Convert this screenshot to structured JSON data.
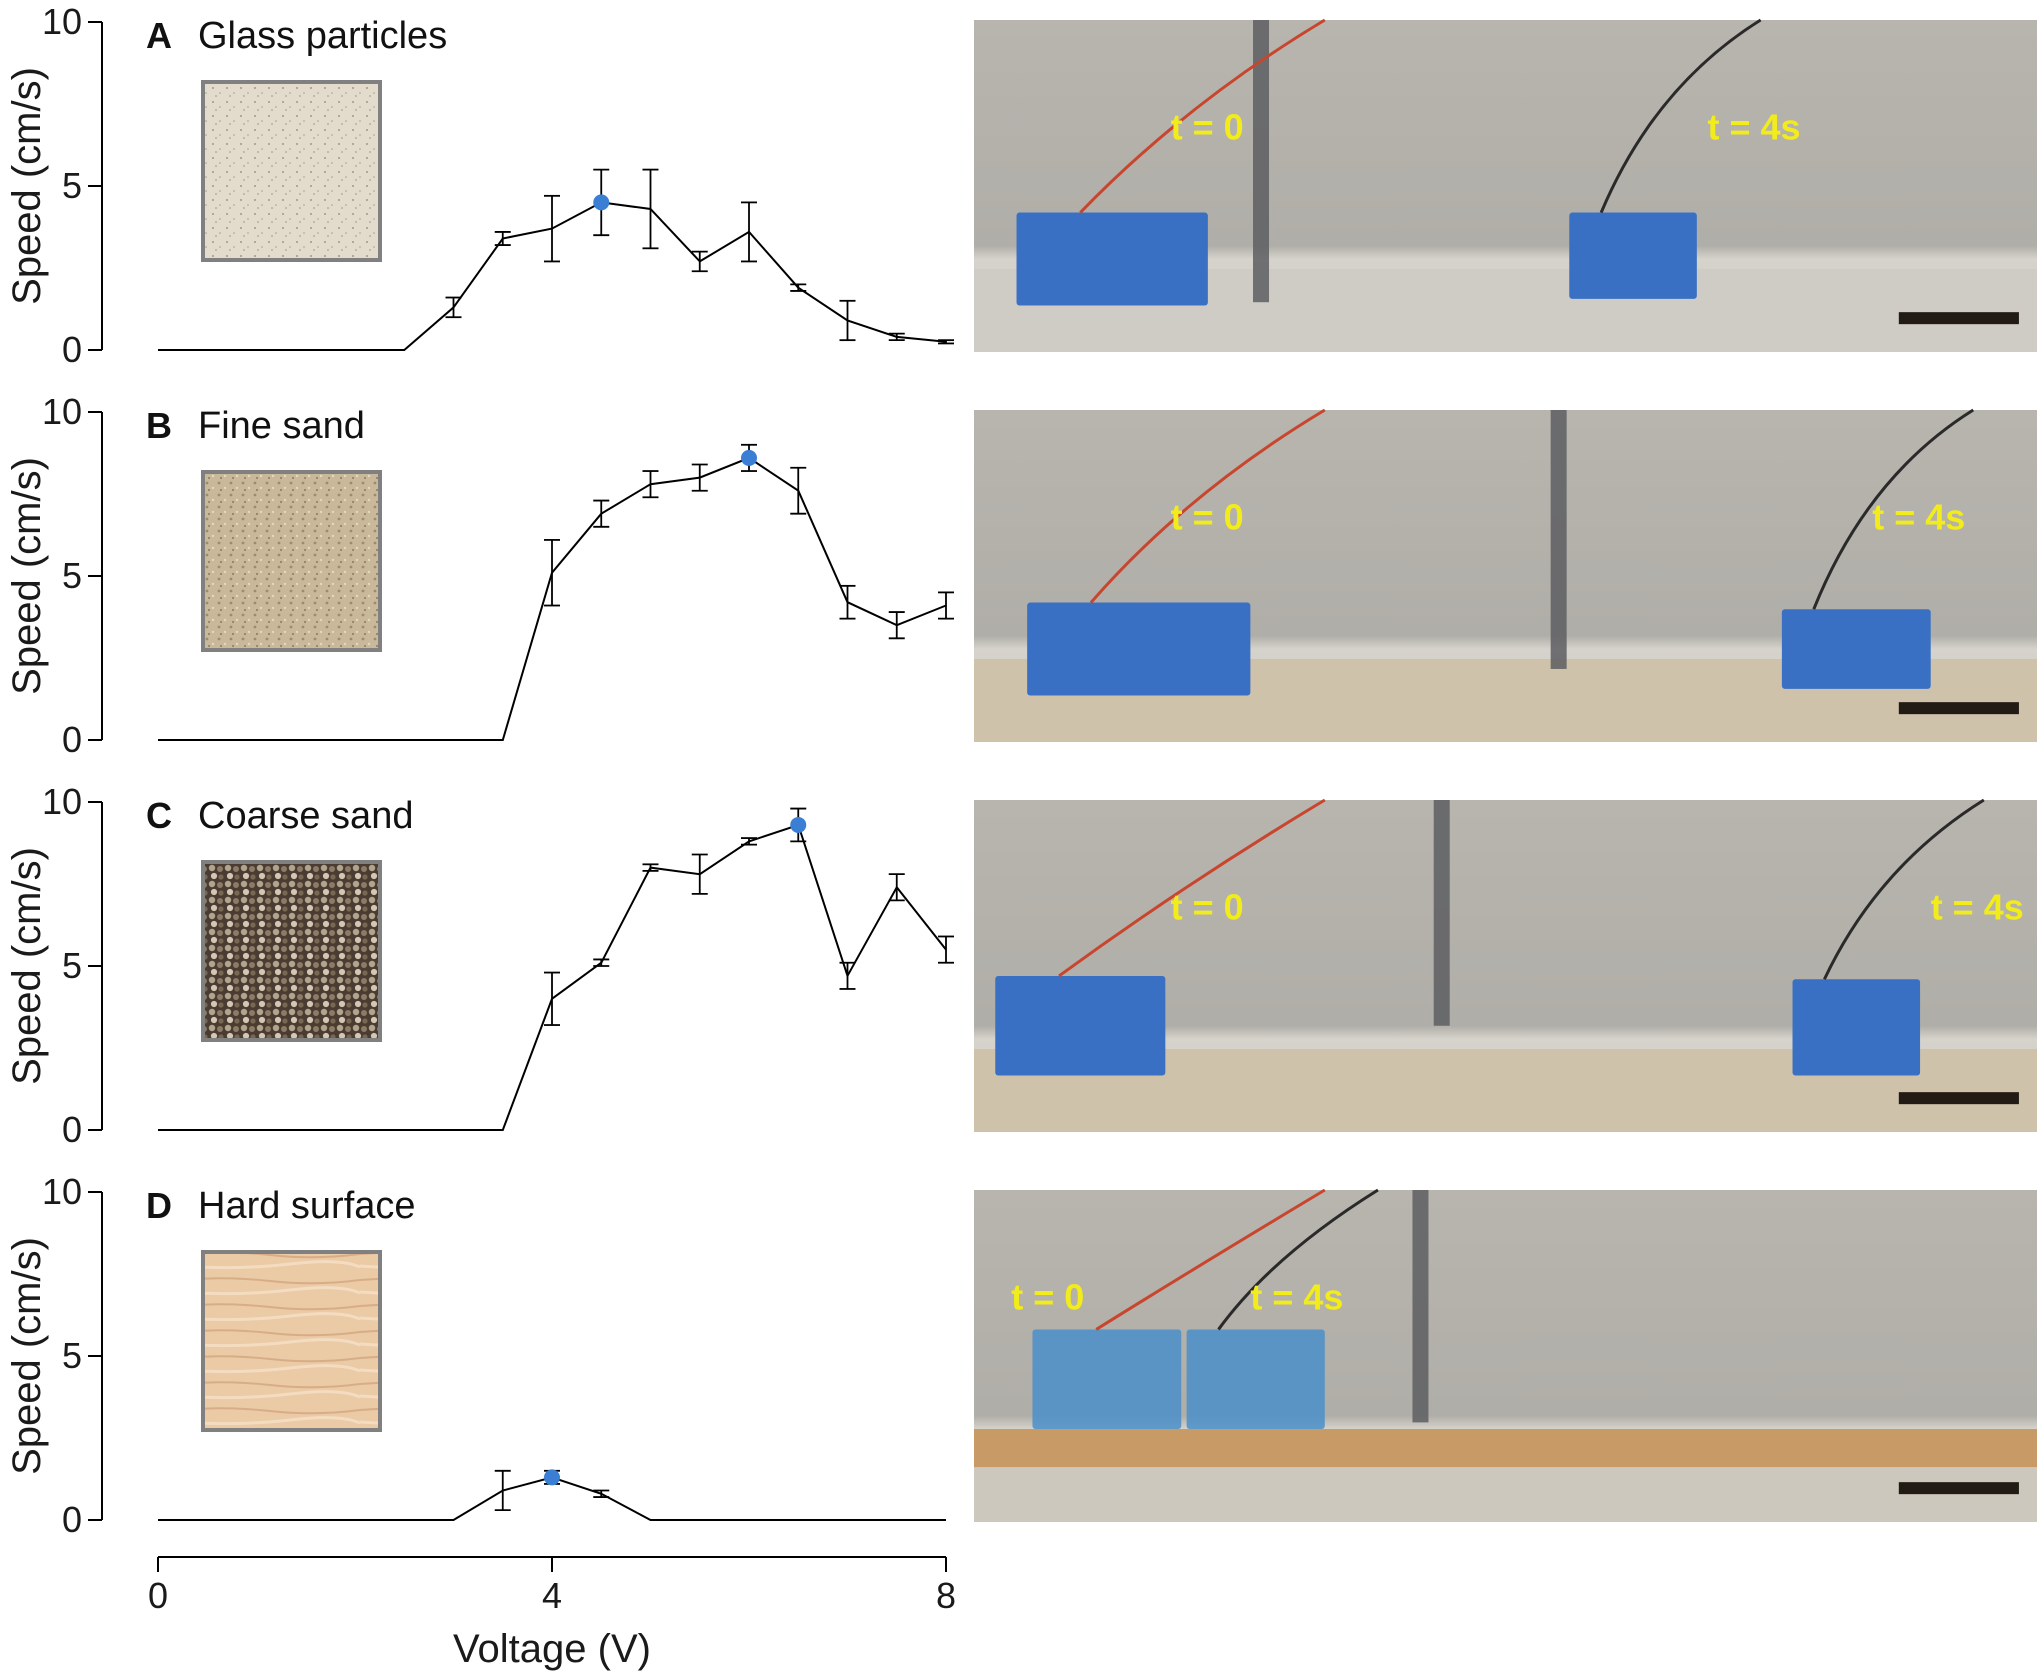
{
  "x_axis": {
    "label": "Voltage (V)",
    "ticks": [
      0,
      4,
      8
    ],
    "range": [
      0,
      8
    ]
  },
  "chart_data": [
    {
      "type": "line",
      "panel_label": "A",
      "title": "Glass particles",
      "ylabel": "Speed (cm/s)",
      "ylim": [
        0,
        10
      ],
      "yticks": [
        0,
        5,
        10
      ],
      "xlim": [
        0,
        8
      ],
      "x": [
        0,
        2.5,
        3,
        3.5,
        4,
        4.5,
        5,
        5.5,
        6,
        6.5,
        7,
        7.5,
        8
      ],
      "y": [
        0,
        0,
        1.3,
        3.4,
        3.7,
        4.5,
        4.3,
        2.7,
        3.6,
        1.9,
        0.9,
        0.4,
        0.25
      ],
      "err": [
        null,
        null,
        0.3,
        0.2,
        1.0,
        1.0,
        1.2,
        0.3,
        0.9,
        0.1,
        0.6,
        0.1,
        0.05
      ],
      "highlight_x": 4.5,
      "material_color": "#e3dbcb",
      "photo_labels": [
        "t = 0",
        "t = 4s"
      ]
    },
    {
      "type": "line",
      "panel_label": "B",
      "title": "Fine sand",
      "ylabel": "Speed (cm/s)",
      "ylim": [
        0,
        10
      ],
      "yticks": [
        0,
        5,
        10
      ],
      "xlim": [
        0,
        8
      ],
      "x": [
        0,
        3.5,
        4,
        4.5,
        5,
        5.5,
        6,
        6.5,
        7,
        7.5,
        8
      ],
      "y": [
        0,
        0,
        5.1,
        6.9,
        7.8,
        8.0,
        8.6,
        7.6,
        4.2,
        3.5,
        4.1
      ],
      "err": [
        null,
        null,
        1.0,
        0.4,
        0.4,
        0.4,
        0.4,
        0.7,
        0.5,
        0.4,
        0.4
      ],
      "highlight_x": 6,
      "material_color": "#c9b99a",
      "photo_labels": [
        "t = 0",
        "t = 4s"
      ]
    },
    {
      "type": "line",
      "panel_label": "C",
      "title": "Coarse sand",
      "ylabel": "Speed (cm/s)",
      "ylim": [
        0,
        10
      ],
      "yticks": [
        0,
        5,
        10
      ],
      "xlim": [
        0,
        8
      ],
      "x": [
        0,
        3.5,
        4,
        4.5,
        5,
        5.5,
        6,
        6.5,
        7,
        7.5,
        8
      ],
      "y": [
        0,
        0,
        4.0,
        5.1,
        8.0,
        7.8,
        8.8,
        9.3,
        4.7,
        7.4,
        5.5
      ],
      "err": [
        null,
        null,
        0.8,
        0.1,
        0.1,
        0.6,
        0.1,
        0.5,
        0.4,
        0.4,
        0.4
      ],
      "highlight_x": 6.5,
      "material_color": "#7d6d5a",
      "photo_labels": [
        "t = 0",
        "t = 4s"
      ]
    },
    {
      "type": "line",
      "panel_label": "D",
      "title": "Hard surface",
      "ylabel": "Speed (cm/s)",
      "ylim": [
        0,
        10
      ],
      "yticks": [
        0,
        5,
        10
      ],
      "xlim": [
        0,
        8
      ],
      "x": [
        0,
        3,
        3.5,
        4,
        4.5,
        5,
        8
      ],
      "y": [
        0,
        0,
        0.9,
        1.3,
        0.8,
        0,
        0
      ],
      "err": [
        null,
        null,
        0.6,
        0.2,
        0.1,
        null,
        null
      ],
      "highlight_x": 4,
      "material_color": "#e9c7a3",
      "photo_labels": [
        "t = 0",
        "t = 4s"
      ]
    }
  ],
  "colors": {
    "line": "#000000",
    "highlight": "#3b7fd4",
    "label_text": "#f2ec1a",
    "tape_block": "#3a70c4",
    "scale_bar": "#221a14"
  }
}
